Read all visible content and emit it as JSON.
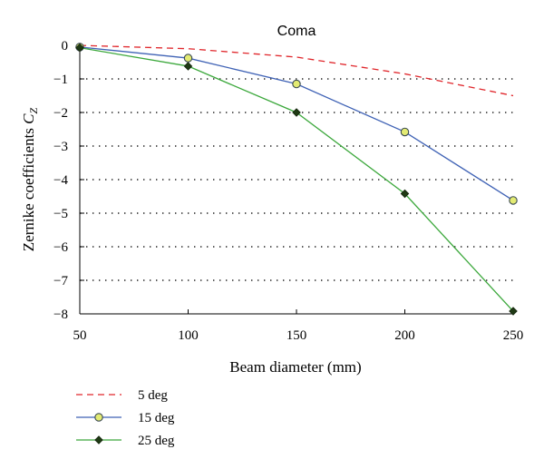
{
  "chart_data": {
    "type": "line",
    "title": "Coma",
    "xlabel": "Beam diameter (mm)",
    "ylabel": "Zernike coefficients",
    "ylabel_symbol": "C",
    "ylabel_subscript": "Z",
    "x": [
      50,
      100,
      150,
      200,
      250
    ],
    "xlim": [
      50,
      250
    ],
    "ylim": [
      -8,
      0
    ],
    "xticks": [
      "50",
      "100",
      "150",
      "200",
      "250"
    ],
    "yticks": [
      "0",
      "−1",
      "−2",
      "−3",
      "−4",
      "−5",
      "−6",
      "−7",
      "−8"
    ],
    "grid": "horizontal dotted",
    "legend_placement": "bottom-left, below plot",
    "series": [
      {
        "name": "5 deg",
        "values": [
          0,
          -0.1,
          -0.35,
          -0.85,
          -1.5
        ],
        "color": "#e0262b",
        "style": "dashed",
        "marker": "none"
      },
      {
        "name": "15 deg",
        "values": [
          -0.05,
          -0.38,
          -1.15,
          -2.58,
          -4.62
        ],
        "color": "#3f62b5",
        "style": "solid",
        "marker": "circle",
        "marker_fill": "#e3eb73"
      },
      {
        "name": "25 deg",
        "values": [
          -0.07,
          -0.62,
          -2.0,
          -4.42,
          -7.92
        ],
        "color": "#3ca83c",
        "style": "solid",
        "marker": "diamond",
        "marker_fill": "#1f3a14"
      }
    ]
  }
}
